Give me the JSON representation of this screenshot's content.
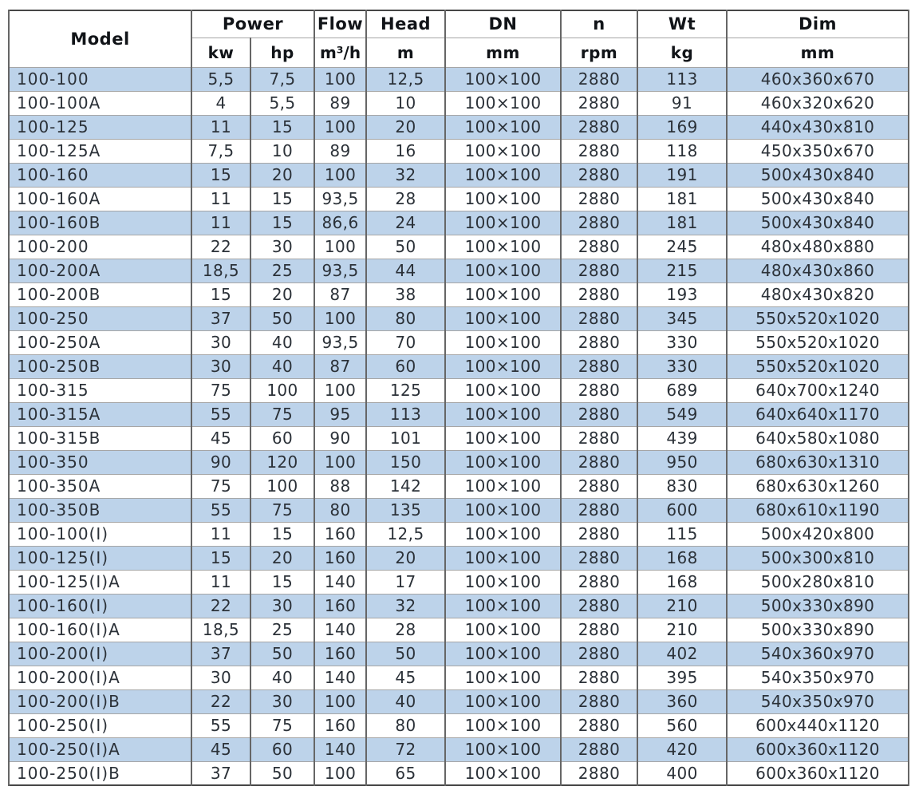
{
  "style": {
    "alt_row_fill": "#bdd3ea",
    "grid_horizontal": "#a6a6a6",
    "grid_vertical": "#666666",
    "outer_border": "#474747",
    "text_color": "#2b3138",
    "header_text_color": "#111418",
    "background": "#ffffff"
  },
  "chart_data": {
    "type": "table",
    "legend_position": "none",
    "grid": true,
    "header_groups": {
      "model": "Model",
      "power": "Power",
      "flow": "Flow",
      "head": "Head",
      "dn": "DN",
      "n": "n",
      "wt": "Wt",
      "dim": "Dim"
    },
    "units": {
      "kw": "kw",
      "hp": "hp",
      "flow": "m³/h",
      "head": "m",
      "dn": "mm",
      "n": "rpm",
      "wt": "kg",
      "dim": "mm"
    },
    "columns": [
      "Model",
      "Power kw",
      "Power hp",
      "Flow m³/h",
      "Head m",
      "DN mm",
      "n rpm",
      "Wt kg",
      "Dim mm"
    ],
    "field_names": [
      "model",
      "power-kw",
      "power-hp",
      "flow",
      "head",
      "dn",
      "rpm",
      "weight",
      "dimensions"
    ],
    "rows": [
      [
        "100-100",
        "5,5",
        "7,5",
        "100",
        "12,5",
        "100×100",
        "2880",
        "113",
        "460x360x670"
      ],
      [
        "100-100A",
        "4",
        "5,5",
        "89",
        "10",
        "100×100",
        "2880",
        "91",
        "460x320x620"
      ],
      [
        "100-125",
        "11",
        "15",
        "100",
        "20",
        "100×100",
        "2880",
        "169",
        "440x430x810"
      ],
      [
        "100-125A",
        "7,5",
        "10",
        "89",
        "16",
        "100×100",
        "2880",
        "118",
        "450x350x670"
      ],
      [
        "100-160",
        "15",
        "20",
        "100",
        "32",
        "100×100",
        "2880",
        "191",
        "500x430x840"
      ],
      [
        "100-160A",
        "11",
        "15",
        "93,5",
        "28",
        "100×100",
        "2880",
        "181",
        "500x430x840"
      ],
      [
        "100-160B",
        "11",
        "15",
        "86,6",
        "24",
        "100×100",
        "2880",
        "181",
        "500x430x840"
      ],
      [
        "100-200",
        "22",
        "30",
        "100",
        "50",
        "100×100",
        "2880",
        "245",
        "480x480x880"
      ],
      [
        "100-200A",
        "18,5",
        "25",
        "93,5",
        "44",
        "100×100",
        "2880",
        "215",
        "480x430x860"
      ],
      [
        "100-200B",
        "15",
        "20",
        "87",
        "38",
        "100×100",
        "2880",
        "193",
        "480x430x820"
      ],
      [
        "100-250",
        "37",
        "50",
        "100",
        "80",
        "100×100",
        "2880",
        "345",
        "550x520x1020"
      ],
      [
        "100-250A",
        "30",
        "40",
        "93,5",
        "70",
        "100×100",
        "2880",
        "330",
        "550x520x1020"
      ],
      [
        "100-250B",
        "30",
        "40",
        "87",
        "60",
        "100×100",
        "2880",
        "330",
        "550x520x1020"
      ],
      [
        "100-315",
        "75",
        "100",
        "100",
        "125",
        "100×100",
        "2880",
        "689",
        "640x700x1240"
      ],
      [
        "100-315A",
        "55",
        "75",
        "95",
        "113",
        "100×100",
        "2880",
        "549",
        "640x640x1170"
      ],
      [
        "100-315B",
        "45",
        "60",
        "90",
        "101",
        "100×100",
        "2880",
        "439",
        "640x580x1080"
      ],
      [
        "100-350",
        "90",
        "120",
        "100",
        "150",
        "100×100",
        "2880",
        "950",
        "680x630x1310"
      ],
      [
        "100-350A",
        "75",
        "100",
        "88",
        "142",
        "100×100",
        "2880",
        "830",
        "680x630x1260"
      ],
      [
        "100-350B",
        "55",
        "75",
        "80",
        "135",
        "100×100",
        "2880",
        "600",
        "680x610x1190"
      ],
      [
        "100-100(I)",
        "11",
        "15",
        "160",
        "12,5",
        "100×100",
        "2880",
        "115",
        "500x420x800"
      ],
      [
        "100-125(I)",
        "15",
        "20",
        "160",
        "20",
        "100×100",
        "2880",
        "168",
        "500x300x810"
      ],
      [
        "100-125(I)A",
        "11",
        "15",
        "140",
        "17",
        "100×100",
        "2880",
        "168",
        "500x280x810"
      ],
      [
        "100-160(I)",
        "22",
        "30",
        "160",
        "32",
        "100×100",
        "2880",
        "210",
        "500x330x890"
      ],
      [
        "100-160(I)A",
        "18,5",
        "25",
        "140",
        "28",
        "100×100",
        "2880",
        "210",
        "500x330x890"
      ],
      [
        "100-200(I)",
        "37",
        "50",
        "160",
        "50",
        "100×100",
        "2880",
        "402",
        "540x360x970"
      ],
      [
        "100-200(I)A",
        "30",
        "40",
        "140",
        "45",
        "100×100",
        "2880",
        "395",
        "540x350x970"
      ],
      [
        "100-200(I)B",
        "22",
        "30",
        "100",
        "40",
        "100×100",
        "2880",
        "360",
        "540x350x970"
      ],
      [
        "100-250(I)",
        "55",
        "75",
        "160",
        "80",
        "100×100",
        "2880",
        "560",
        "600x440x1120"
      ],
      [
        "100-250(I)A",
        "45",
        "60",
        "140",
        "72",
        "100×100",
        "2880",
        "420",
        "600x360x1120"
      ],
      [
        "100-250(I)B",
        "37",
        "50",
        "100",
        "65",
        "100×100",
        "2880",
        "400",
        "600x360x1120"
      ]
    ],
    "alt_shaded_rows": "odd rows (1st, 3rd, 5th, ...) have light blue fill"
  }
}
